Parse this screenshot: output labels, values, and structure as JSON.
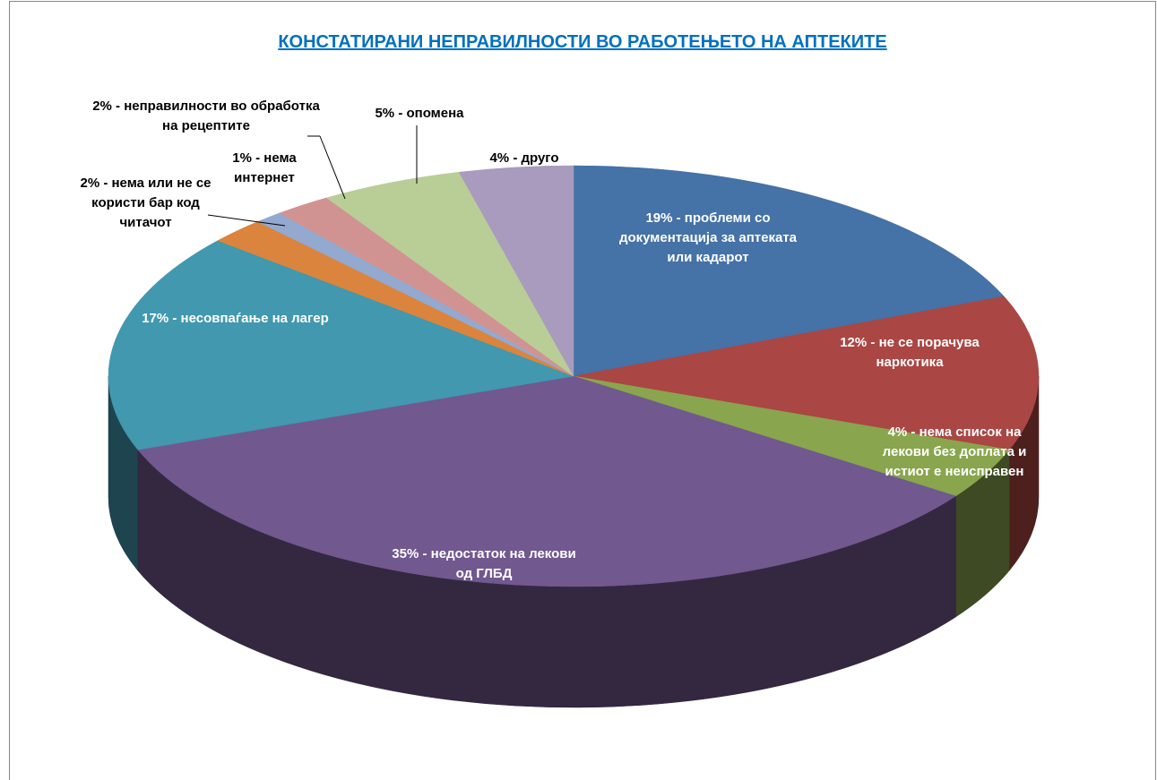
{
  "chart_data": {
    "type": "pie",
    "title": "КОНСТАТИРАНИ НЕПРАВИЛНОСТИ ВО РАБОТЕЊЕТО НА АПТЕКИТЕ",
    "values": [
      19,
      12,
      4,
      35,
      17,
      2,
      1,
      2,
      5,
      4
    ],
    "value_labels": [
      "19% - проблеми со документација за аптеката или кадарот",
      "12% - не се порачува наркотика",
      "4% - нема список на лекови без доплата и истиот е неисправен",
      "35% - недостаток на лекови од ГЛБД",
      "17% - несовпаѓање на лагер",
      "2% - нема или не се користи бар код читачот",
      "1% - нема интернет",
      "2% - неправилности во обработка на рецептите",
      "5% - опомена",
      "4% - друго"
    ],
    "colors": [
      "#4572a7",
      "#aa4643",
      "#89a54e",
      "#71588f",
      "#4198af",
      "#db843d",
      "#93a9cf",
      "#d19392",
      "#b9cd96",
      "#a99bbd"
    ]
  }
}
